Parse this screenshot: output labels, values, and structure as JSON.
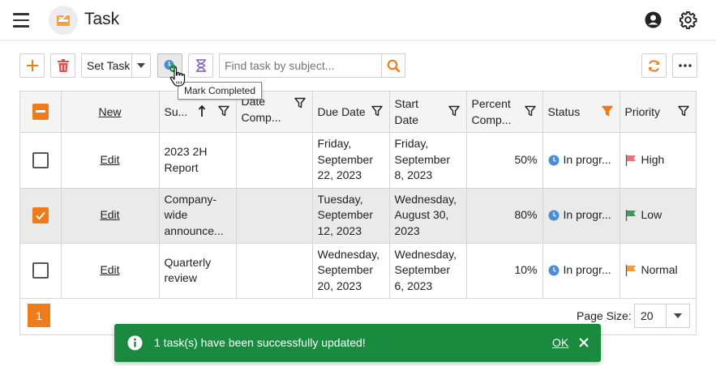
{
  "header": {
    "title": "Task"
  },
  "toolbar": {
    "set_task_label": "Set Task",
    "search_placeholder": "Find task by subject...",
    "tooltip": "Mark Completed"
  },
  "colors": {
    "accent": "#f07b1a",
    "toast_bg": "#1a8a3e",
    "status_icon": "#4a8fd6",
    "priority_high": "#e8737a",
    "priority_low": "#3a9a5a",
    "priority_normal": "#f29b38"
  },
  "grid": {
    "columns": {
      "new": "New",
      "subject": "Su...",
      "date_completed": "Date Comp...",
      "due_date": "Due Date",
      "start_date": "Start Date",
      "percent": "Percent Comp...",
      "status": "Status",
      "priority": "Priority"
    },
    "rows": [
      {
        "edit": "Edit",
        "checked": false,
        "subject": "2023 2H Report",
        "date_completed": "",
        "due_date": "Friday, September 22, 2023",
        "start_date": "Friday, September 8, 2023",
        "percent": "50%",
        "status": "In progr...",
        "priority": "High",
        "priority_icon": "red-flag-icon"
      },
      {
        "edit": "Edit",
        "checked": true,
        "subject": "Company-wide announce...",
        "date_completed": "",
        "due_date": "Tuesday, September 12, 2023",
        "start_date": "Wednesday, August 30, 2023",
        "percent": "80%",
        "status": "In progr...",
        "priority": "Low",
        "priority_icon": "green-flag-icon"
      },
      {
        "edit": "Edit",
        "checked": false,
        "subject": "Quarterly review",
        "date_completed": "",
        "due_date": "Wednesday, September 20, 2023",
        "start_date": "Wednesday, September 6, 2023",
        "percent": "10%",
        "status": "In progr...",
        "priority": "Normal",
        "priority_icon": "orange-flag-icon"
      }
    ]
  },
  "pager": {
    "current_page": "1",
    "page_size_label": "Page Size:",
    "page_size": "20"
  },
  "toast": {
    "message": "1 task(s) have been successfully updated!",
    "ok_label": "OK"
  }
}
